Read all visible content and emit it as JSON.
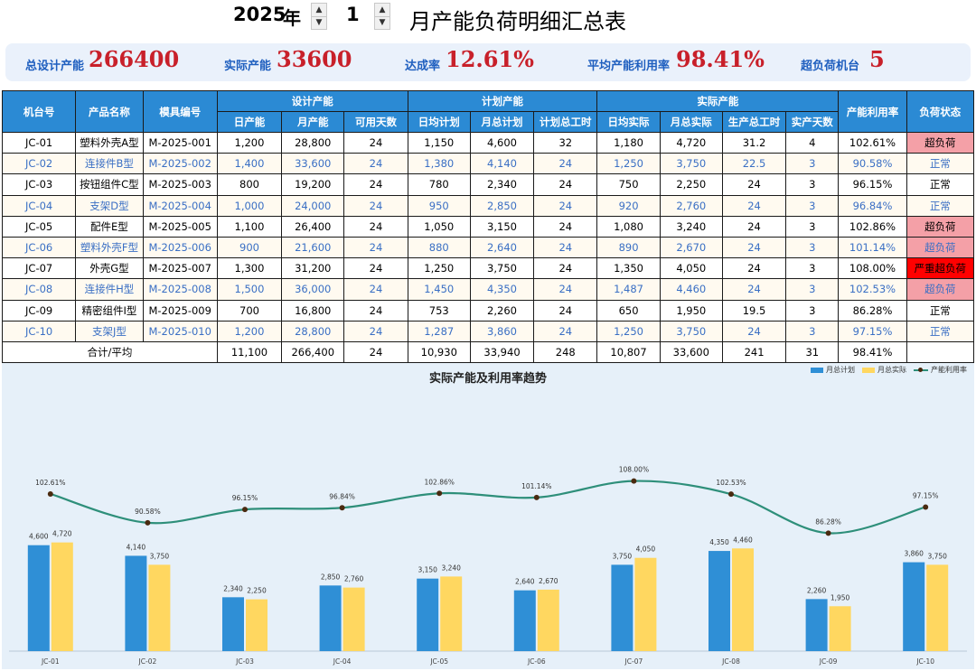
{
  "header": {
    "year": "2025",
    "year_unit": "年",
    "month": "1",
    "title": "月产能负荷明细汇总表"
  },
  "kpis": [
    {
      "label": "总设计产能",
      "value": "266400"
    },
    {
      "label": "实际产能",
      "value": "33600"
    },
    {
      "label": "达成率",
      "value": "12.61%"
    },
    {
      "label": "平均产能利用率",
      "value": "98.41%"
    },
    {
      "label": "超负荷机台",
      "value": "5"
    }
  ],
  "table": {
    "group_headers": {
      "machine": "机台号",
      "product": "产品名称",
      "mold": "模具编号",
      "design": "设计产能",
      "plan": "计划产能",
      "actual": "实际产能",
      "util": "产能利用率",
      "status": "负荷状态"
    },
    "sub_headers": [
      "日产能",
      "月产能",
      "可用天数",
      "日均计划",
      "月总计划",
      "计划总工时",
      "日均实际",
      "月总实际",
      "生产总工时",
      "实产天数"
    ],
    "rows": [
      {
        "cells": [
          "JC-01",
          "塑料外壳A型",
          "M-2025-001",
          "1,200",
          "28,800",
          "24",
          "1,150",
          "4,600",
          "32",
          "1,180",
          "4,720",
          "31.2",
          "4",
          "102.61%",
          "超负荷"
        ],
        "status": "over"
      },
      {
        "cells": [
          "JC-02",
          "连接件B型",
          "M-2025-002",
          "1,400",
          "33,600",
          "24",
          "1,380",
          "4,140",
          "24",
          "1,250",
          "3,750",
          "22.5",
          "3",
          "90.58%",
          "正常"
        ],
        "status": "normal"
      },
      {
        "cells": [
          "JC-03",
          "按钮组件C型",
          "M-2025-003",
          "800",
          "19,200",
          "24",
          "780",
          "2,340",
          "24",
          "750",
          "2,250",
          "24",
          "3",
          "96.15%",
          "正常"
        ],
        "status": "normal"
      },
      {
        "cells": [
          "JC-04",
          "支架D型",
          "M-2025-004",
          "1,000",
          "24,000",
          "24",
          "950",
          "2,850",
          "24",
          "920",
          "2,760",
          "24",
          "3",
          "96.84%",
          "正常"
        ],
        "status": "normal"
      },
      {
        "cells": [
          "JC-05",
          "配件E型",
          "M-2025-005",
          "1,100",
          "26,400",
          "24",
          "1,050",
          "3,150",
          "24",
          "1,080",
          "3,240",
          "24",
          "3",
          "102.86%",
          "超负荷"
        ],
        "status": "over"
      },
      {
        "cells": [
          "JC-06",
          "塑料外壳F型",
          "M-2025-006",
          "900",
          "21,600",
          "24",
          "880",
          "2,640",
          "24",
          "890",
          "2,670",
          "24",
          "3",
          "101.14%",
          "超负荷"
        ],
        "status": "over"
      },
      {
        "cells": [
          "JC-07",
          "外壳G型",
          "M-2025-007",
          "1,300",
          "31,200",
          "24",
          "1,250",
          "3,750",
          "24",
          "1,350",
          "4,050",
          "24",
          "3",
          "108.00%",
          "严重超负荷"
        ],
        "status": "severe"
      },
      {
        "cells": [
          "JC-08",
          "连接件H型",
          "M-2025-008",
          "1,500",
          "36,000",
          "24",
          "1,450",
          "4,350",
          "24",
          "1,487",
          "4,460",
          "24",
          "3",
          "102.53%",
          "超负荷"
        ],
        "status": "over"
      },
      {
        "cells": [
          "JC-09",
          "精密组件I型",
          "M-2025-009",
          "700",
          "16,800",
          "24",
          "753",
          "2,260",
          "24",
          "650",
          "1,950",
          "19.5",
          "3",
          "86.28%",
          "正常"
        ],
        "status": "normal"
      },
      {
        "cells": [
          "JC-10",
          "支架J型",
          "M-2025-010",
          "1,200",
          "28,800",
          "24",
          "1,287",
          "3,860",
          "24",
          "1,250",
          "3,750",
          "24",
          "3",
          "97.15%",
          "正常"
        ],
        "status": "normal"
      }
    ],
    "total": {
      "label": "合计/平均",
      "cells": [
        "11,100",
        "266,400",
        "24",
        "10,930",
        "33,940",
        "248",
        "10,807",
        "33,600",
        "241",
        "31",
        "98.41%",
        ""
      ]
    }
  },
  "colors": {
    "plan_bar": "#2f8fd6",
    "actual_bar": "#ffd760",
    "util_line": "#2e8f7a",
    "util_point": "#4a2a10",
    "header_bg": "#2b8ad4",
    "kpi_value": "#c8202a",
    "over": "#f4a0a7",
    "severe": "#ff0000"
  },
  "chart_data": {
    "type": "bar",
    "title": "实际产能及利用率趋势",
    "categories": [
      "JC-01",
      "JC-02",
      "JC-03",
      "JC-04",
      "JC-05",
      "JC-06",
      "JC-07",
      "JC-08",
      "JC-09",
      "JC-10"
    ],
    "series": [
      {
        "name": "月总计划",
        "type": "bar",
        "values": [
          4600,
          4140,
          2340,
          2850,
          3150,
          2640,
          3750,
          4350,
          2260,
          3860
        ],
        "labels": [
          "4,600",
          "4,140",
          "2,340",
          "2,850",
          "3,150",
          "2,640",
          "3,750",
          "4,350",
          "2,260",
          "3,860"
        ]
      },
      {
        "name": "月总实际",
        "type": "bar",
        "values": [
          4720,
          3750,
          2250,
          2760,
          3240,
          2670,
          4050,
          4460,
          1950,
          3750
        ],
        "labels": [
          "4,720",
          "3,750",
          "2,250",
          "2,760",
          "3,240",
          "2,670",
          "4,050",
          "4,460",
          "1,950",
          "3,750"
        ]
      },
      {
        "name": "产能利用率",
        "type": "line",
        "values": [
          102.61,
          90.58,
          96.15,
          96.84,
          102.86,
          101.14,
          108.0,
          102.53,
          86.28,
          97.15
        ],
        "labels": [
          "102.61%",
          "90.58%",
          "96.15%",
          "96.84%",
          "102.86%",
          "101.14%",
          "108.00%",
          "102.53%",
          "86.28%",
          "97.15%"
        ]
      }
    ],
    "grid": false,
    "legend_position": "top-right"
  }
}
